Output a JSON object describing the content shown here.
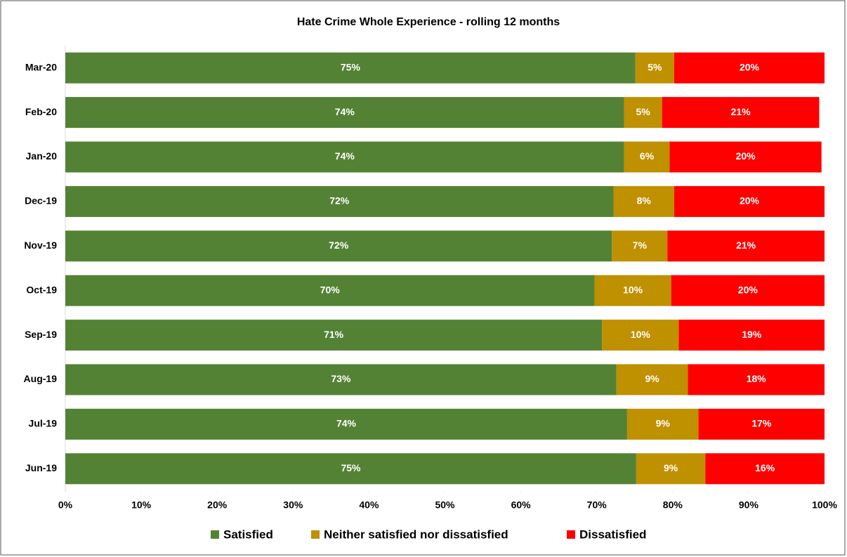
{
  "chart_data": {
    "type": "stacked-barh",
    "title": "Hate Crime Whole Experience - rolling 12 months",
    "categories": [
      "Mar-20",
      "Feb-20",
      "Jan-20",
      "Dec-19",
      "Nov-19",
      "Oct-19",
      "Sep-19",
      "Aug-19",
      "Jul-19",
      "Jun-19"
    ],
    "series": [
      {
        "name": "Satisfied",
        "color": "#548235",
        "values": [
          75.1,
          73.6,
          73.6,
          72.2,
          72.0,
          69.7,
          70.7,
          72.6,
          74.0,
          75.2
        ],
        "value_labels": [
          "75%",
          "74%",
          "74%",
          "72%",
          "72%",
          "70%",
          "71%",
          "73%",
          "74%",
          "75%"
        ]
      },
      {
        "name": "Neither satisfied nor dissatisfied",
        "color": "#bf9000",
        "values": [
          5.1,
          5.0,
          6.0,
          8.0,
          7.3,
          10.1,
          10.1,
          9.4,
          9.4,
          9.1
        ],
        "value_labels": [
          "5%",
          "5%",
          "6%",
          "8%",
          "7%",
          "10%",
          "10%",
          "9%",
          "9%",
          "9%"
        ]
      },
      {
        "name": "Dissatisfied",
        "color": "#ff0000",
        "values": [
          19.8,
          20.7,
          20.0,
          19.8,
          20.7,
          20.2,
          19.2,
          18.0,
          16.6,
          15.7
        ],
        "value_labels": [
          "20%",
          "21%",
          "20%",
          "20%",
          "21%",
          "20%",
          "19%",
          "18%",
          "17%",
          "16%"
        ]
      }
    ],
    "xlim": [
      0,
      100
    ],
    "xticks": [
      {
        "value": 0,
        "label": "0%"
      },
      {
        "value": 10,
        "label": "10%"
      },
      {
        "value": 20,
        "label": "20%"
      },
      {
        "value": 30,
        "label": "30%"
      },
      {
        "value": 40,
        "label": "40%"
      },
      {
        "value": 50,
        "label": "50%"
      },
      {
        "value": 60,
        "label": "60%"
      },
      {
        "value": 70,
        "label": "70%"
      },
      {
        "value": 80,
        "label": "80%"
      },
      {
        "value": 90,
        "label": "90%"
      },
      {
        "value": 100,
        "label": "100%"
      }
    ],
    "legend": "bottom"
  }
}
